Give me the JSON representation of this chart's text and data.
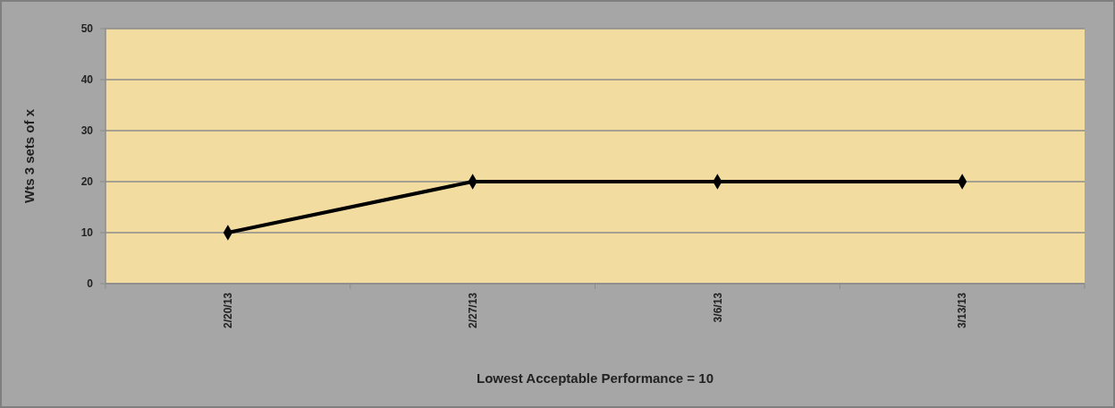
{
  "chart_data": {
    "type": "line",
    "xlabel": "Lowest Acceptable Performance = 10",
    "ylabel": "Wts 3 sets of x",
    "categories": [
      "2/20/13",
      "2/27/13",
      "3/6/13",
      "3/13/13"
    ],
    "series": [
      {
        "color": "#000000",
        "values": [
          10,
          20,
          20,
          20
        ]
      }
    ],
    "ylim": [
      0,
      50
    ],
    "yticks": [
      0,
      10,
      20,
      30,
      40,
      50
    ],
    "grid": "y",
    "marker": "diamond",
    "line_style": "solid"
  }
}
